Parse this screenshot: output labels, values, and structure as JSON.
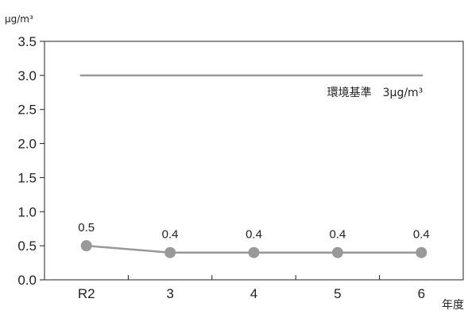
{
  "chart_data": {
    "type": "line",
    "categories": [
      "R2",
      "3",
      "4",
      "5",
      "6"
    ],
    "series": [
      {
        "values": [
          0.5,
          0.4,
          0.4,
          0.4,
          0.4
        ],
        "color": "#999999"
      }
    ],
    "data_labels": [
      "0.5",
      "0.4",
      "0.4",
      "0.4",
      "0.4"
    ],
    "y_unit": "μg/m³",
    "x_unit": "年度",
    "ylim": [
      0,
      3.5
    ],
    "y_ticks": [
      "0.0",
      "0.5",
      "1.0",
      "1.5",
      "2.0",
      "2.5",
      "3.0",
      "3.5"
    ],
    "reference_line": {
      "value": 3.0,
      "label": "環境基準　3μg/m³",
      "color": "#999999"
    },
    "grid": false,
    "legend": "none"
  }
}
